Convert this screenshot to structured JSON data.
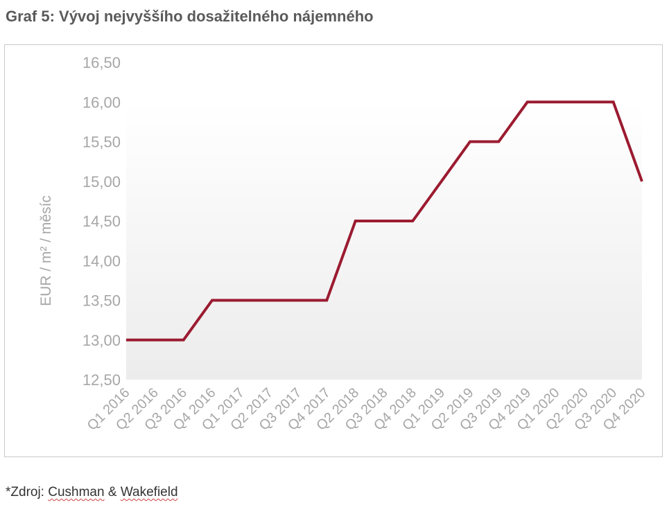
{
  "header": {
    "title": "Graf 5: Vývoj nejvyššího dosažitelného nájemného"
  },
  "footer": {
    "source_prefix": "*Zdroj: ",
    "source_word1": "Cushman",
    "source_amp": " & ",
    "source_word2": "Wakefield"
  },
  "colors": {
    "line": "#9b1b30",
    "tick_text": "#a6a6a6",
    "title": "#5a5a5a"
  },
  "chart_data": {
    "type": "line",
    "title": "Graf 5: Vývoj nejvyššího dosažitelného nájemného",
    "ylabel": "EUR / m² / měsíc",
    "xlabel": "",
    "categories": [
      "Q1 2016",
      "Q2 2016",
      "Q3 2016",
      "Q4 2016",
      "Q1 2017",
      "Q2 2017",
      "Q3 2017",
      "Q4 2017",
      "Q2 2018",
      "Q3 2018",
      "Q4 2018",
      "Q1 2019",
      "Q2 2019",
      "Q3 2019",
      "Q4 2019",
      "Q1 2020",
      "Q2 2020",
      "Q3 2020",
      "Q4 2020"
    ],
    "series": [
      {
        "values": [
          13.0,
          13.0,
          13.0,
          13.5,
          13.5,
          13.5,
          13.5,
          13.5,
          14.5,
          14.5,
          14.5,
          15.0,
          15.5,
          15.5,
          16.0,
          16.0,
          16.0,
          16.0,
          15.0
        ]
      }
    ],
    "ylim": [
      12.5,
      16.5
    ],
    "yticks": [
      "12,50",
      "13,00",
      "13,50",
      "14,00",
      "14,50",
      "15,00",
      "15,50",
      "16,00",
      "16,50"
    ],
    "grid": false,
    "legend": "none"
  }
}
